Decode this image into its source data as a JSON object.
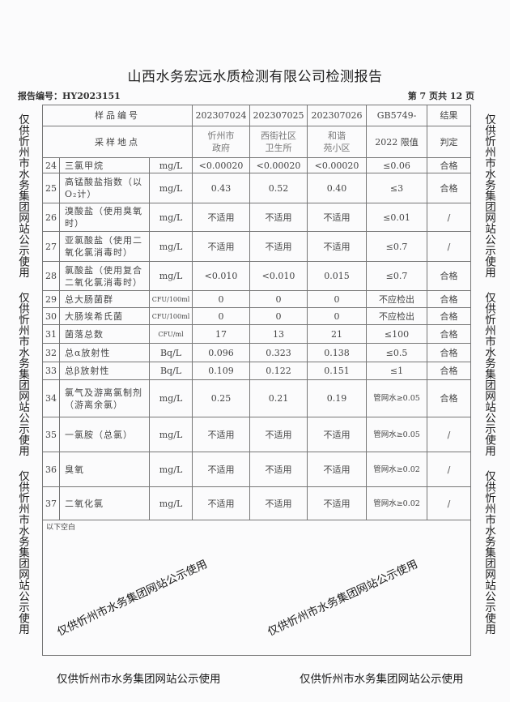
{
  "title": "山西水务宏远水质检测有限公司检测报告",
  "report_no": "报告编号：HY2023151",
  "page_info": "第 7 页共 12 页",
  "header": {
    "sample_no_label": "样品编号",
    "site_label": "采样地点",
    "samples": [
      "202307024",
      "202307025",
      "202307026"
    ],
    "sites": [
      [
        "忻州市",
        "政府"
      ],
      [
        "西街社区",
        "卫生所"
      ],
      [
        "和谐",
        "苑小区"
      ]
    ],
    "limit_label": [
      "GB5749-",
      "2022 限值"
    ],
    "result_label": [
      "结果",
      "判定"
    ]
  },
  "rows": [
    {
      "no": "24",
      "name": "三氯甲烷",
      "unit": "mg/L",
      "v": [
        "<0.00020",
        "<0.00020",
        "<0.00020"
      ],
      "limit": "≤0.06",
      "result": "合格"
    },
    {
      "no": "25",
      "name": "高锰酸盐指数（以O₂计）",
      "unit": "mg/L",
      "v": [
        "0.43",
        "0.52",
        "0.40"
      ],
      "limit": "≤3",
      "result": "合格"
    },
    {
      "no": "26",
      "name": "溴酸盐（使用臭氧时）",
      "unit": "mg/L",
      "v": [
        "不适用",
        "不适用",
        "不适用"
      ],
      "limit": "≤0.01",
      "result": "/"
    },
    {
      "no": "27",
      "name": "亚氯酸盐（使用二氧化氯消毒时）",
      "unit": "mg/L",
      "v": [
        "不适用",
        "不适用",
        "不适用"
      ],
      "limit": "≤0.7",
      "result": "/"
    },
    {
      "no": "28",
      "name": "氯酸盐（使用复合二氧化氯消毒时）",
      "unit": "mg/L",
      "v": [
        "<0.010",
        "<0.010",
        "0.015"
      ],
      "limit": "≤0.7",
      "result": "合格"
    },
    {
      "no": "29",
      "name": "总大肠菌群",
      "unit": "CFU/100ml",
      "v": [
        "0",
        "0",
        "0"
      ],
      "limit": "不应检出",
      "result": "合格"
    },
    {
      "no": "30",
      "name": "大肠埃希氏菌",
      "unit": "CFU/100ml",
      "v": [
        "0",
        "0",
        "0"
      ],
      "limit": "不应检出",
      "result": "合格"
    },
    {
      "no": "31",
      "name": "菌落总数",
      "unit": "CFU/ml",
      "v": [
        "17",
        "13",
        "21"
      ],
      "limit": "≤100",
      "result": "合格"
    },
    {
      "no": "32",
      "name": "总α放射性",
      "unit": "Bq/L",
      "v": [
        "0.096",
        "0.323",
        "0.138"
      ],
      "limit": "≤0.5",
      "result": "合格"
    },
    {
      "no": "33",
      "name": "总β放射性",
      "unit": "Bq/L",
      "v": [
        "0.109",
        "0.122",
        "0.151"
      ],
      "limit": "≤1",
      "result": "合格"
    },
    {
      "no": "34",
      "name": "氯气及游离氯制剂（游离余氯）",
      "unit": "mg/L",
      "v": [
        "0.25",
        "0.21",
        "0.19"
      ],
      "limit": "管网水≥0.05",
      "result": "合格"
    },
    {
      "no": "35",
      "name": "一氯胺（总氯）",
      "unit": "mg/L",
      "v": [
        "不适用",
        "不适用",
        "不适用"
      ],
      "limit": "管网水≥0.05",
      "result": "/"
    },
    {
      "no": "36",
      "name": "臭氧",
      "unit": "mg/L",
      "v": [
        "不适用",
        "不适用",
        "不适用"
      ],
      "limit": "管网水≥0.02",
      "result": "/"
    },
    {
      "no": "37",
      "name": "二氧化氯",
      "unit": "mg/L",
      "v": [
        "不适用",
        "不适用",
        "不适用"
      ],
      "limit": "管网水≥0.02",
      "result": "/"
    }
  ],
  "blank_note": "以下空白",
  "watermark": "仅供忻州市水务集团网站公示使用"
}
